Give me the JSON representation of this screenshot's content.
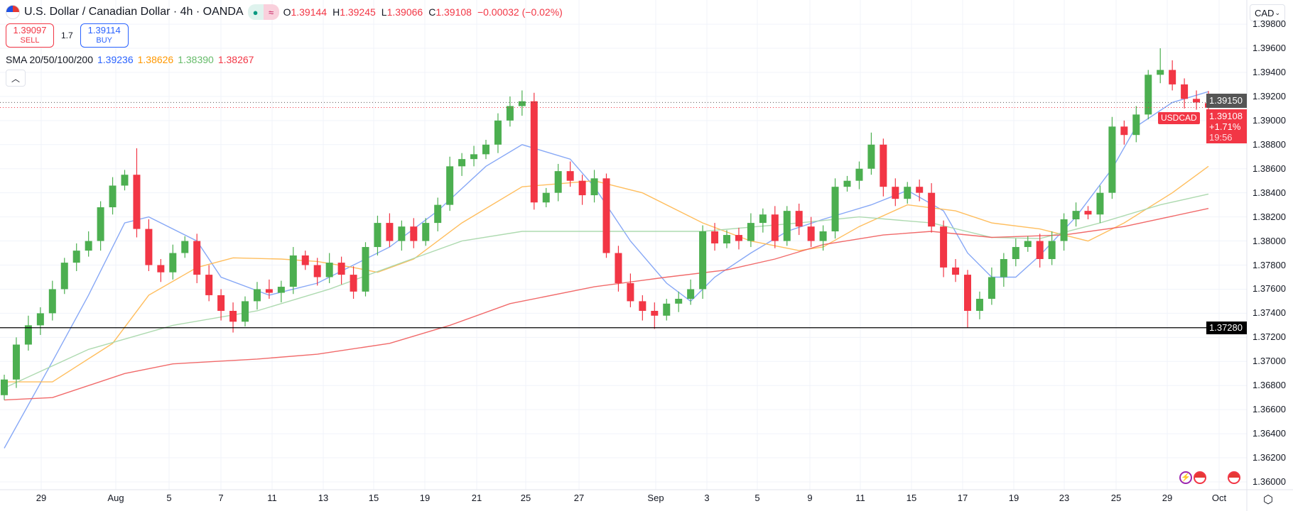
{
  "header": {
    "title": "U.S. Dollar / Canadian Dollar · 4h · OANDA",
    "status_icons": [
      "market-open-dot-icon",
      "approx-icon"
    ],
    "ohlc": {
      "o_label": "O",
      "o": "1.39144",
      "h_label": "H",
      "h": "1.39245",
      "l_label": "L",
      "l": "1.39066",
      "c_label": "C",
      "c": "1.39108",
      "change": "−0.00032 (−0.02%)"
    }
  },
  "trade": {
    "sell_price": "1.39097",
    "sell_label": "SELL",
    "spread": "1.7",
    "buy_price": "1.39114",
    "buy_label": "BUY"
  },
  "indicator": {
    "name": "SMA 20/50/100/200",
    "v20": "1.39236",
    "v50": "1.38626",
    "v100": "1.38390",
    "v200": "1.38267"
  },
  "currency_select": "CAD",
  "price_axis": {
    "ticks": [
      "1.36000",
      "1.36200",
      "1.36400",
      "1.36600",
      "1.36800",
      "1.37000",
      "1.37200",
      "1.37400",
      "1.37600",
      "1.37800",
      "1.38000",
      "1.38200",
      "1.38400",
      "1.38600",
      "1.38800",
      "1.39000",
      "1.39200",
      "1.39400",
      "1.39600",
      "1.39800"
    ],
    "hline_label": "1.37280",
    "crosshair_label": "1.39150",
    "last_price": "1.39108",
    "last_change": "+1.71%",
    "countdown": "19:56",
    "symbol_tag": "USDCAD"
  },
  "time_axis": {
    "labels": [
      "29",
      "Aug",
      "5",
      "7",
      "11",
      "13",
      "15",
      "19",
      "21",
      "25",
      "27",
      "Sep",
      "3",
      "5",
      "9",
      "11",
      "15",
      "17",
      "19",
      "23",
      "25",
      "29",
      "Oct"
    ]
  },
  "colors": {
    "up": "#4caf50",
    "down": "#f23645",
    "sma20": "#7a9ef5",
    "sma50": "#ffb74d",
    "sma100": "#a5d6a7",
    "sma200": "#f05a5a"
  },
  "chart_data": {
    "type": "candlestick",
    "symbol": "USDCAD",
    "interval": "4h",
    "ylim": [
      1.36,
      1.399
    ],
    "grid": true,
    "hlines": [
      1.3728
    ],
    "closes": [
      1.3685,
      1.3714,
      1.373,
      1.374,
      1.376,
      1.3782,
      1.3792,
      1.38,
      1.3828,
      1.3846,
      1.3855,
      1.381,
      1.378,
      1.3774,
      1.379,
      1.38,
      1.3772,
      1.3755,
      1.3742,
      1.3733,
      1.375,
      1.376,
      1.3757,
      1.3762,
      1.3788,
      1.378,
      1.377,
      1.3782,
      1.3772,
      1.3758,
      1.3795,
      1.3815,
      1.38,
      1.3812,
      1.38,
      1.3815,
      1.383,
      1.3862,
      1.3868,
      1.3872,
      1.388,
      1.39,
      1.3912,
      1.3916,
      1.3832,
      1.384,
      1.3858,
      1.385,
      1.3838,
      1.3852,
      1.379,
      1.3765,
      1.375,
      1.3742,
      1.3738,
      1.3748,
      1.3752,
      1.376,
      1.3808,
      1.3798,
      1.3805,
      1.38,
      1.3815,
      1.3822,
      1.38,
      1.3825,
      1.3812,
      1.38,
      1.3808,
      1.3845,
      1.385,
      1.386,
      1.388,
      1.3845,
      1.3835,
      1.3845,
      1.384,
      1.3812,
      1.3778,
      1.3772,
      1.3742,
      1.3752,
      1.377,
      1.3785,
      1.3795,
      1.38,
      1.3785,
      1.38,
      1.3818,
      1.3825,
      1.3822,
      1.384,
      1.3895,
      1.3888,
      1.3905,
      1.3938,
      1.3942,
      1.393,
      1.3918,
      1.3915,
      1.39108
    ],
    "first_open": 1.3672,
    "last_candle": {
      "o": 1.39144,
      "h": 1.39245,
      "l": 1.39066,
      "c": 1.39108
    },
    "notable_highs": {
      "11": 1.3877,
      "43": 1.3925,
      "72": 1.389,
      "96": 1.396
    },
    "notable_lows": {
      "0": 1.3668,
      "19": 1.3724,
      "54": 1.3727,
      "80": 1.3728
    },
    "sma": [
      {
        "name": "SMA 20",
        "color": "#7a9ef5",
        "points": [
          [
            0,
            1.3628
          ],
          [
            4,
            1.37
          ],
          [
            7,
            1.3755
          ],
          [
            10,
            1.3815
          ],
          [
            12,
            1.382
          ],
          [
            16,
            1.38
          ],
          [
            18,
            1.377
          ],
          [
            22,
            1.3755
          ],
          [
            26,
            1.3765
          ],
          [
            29,
            1.378
          ],
          [
            32,
            1.3795
          ],
          [
            36,
            1.3825
          ],
          [
            40,
            1.3862
          ],
          [
            43,
            1.388
          ],
          [
            47,
            1.3868
          ],
          [
            49,
            1.3845
          ],
          [
            52,
            1.38
          ],
          [
            55,
            1.3765
          ],
          [
            57,
            1.375
          ],
          [
            59,
            1.377
          ],
          [
            62,
            1.379
          ],
          [
            65,
            1.3808
          ],
          [
            68,
            1.3818
          ],
          [
            72,
            1.383
          ],
          [
            75,
            1.3842
          ],
          [
            78,
            1.3825
          ],
          [
            80,
            1.379
          ],
          [
            82,
            1.377
          ],
          [
            84,
            1.377
          ],
          [
            86,
            1.3788
          ],
          [
            89,
            1.382
          ],
          [
            92,
            1.386
          ],
          [
            94,
            1.3895
          ],
          [
            97,
            1.3915
          ],
          [
            100,
            1.3924
          ]
        ]
      },
      {
        "name": "SMA 50",
        "color": "#ffb74d",
        "points": [
          [
            0,
            1.3683
          ],
          [
            4,
            1.3683
          ],
          [
            9,
            1.3715
          ],
          [
            12,
            1.3755
          ],
          [
            16,
            1.3778
          ],
          [
            19,
            1.3786
          ],
          [
            23,
            1.3785
          ],
          [
            26,
            1.3783
          ],
          [
            29,
            1.3778
          ],
          [
            31,
            1.3774
          ],
          [
            34,
            1.3785
          ],
          [
            38,
            1.3815
          ],
          [
            43,
            1.3845
          ],
          [
            49,
            1.385
          ],
          [
            53,
            1.384
          ],
          [
            58,
            1.3815
          ],
          [
            62,
            1.38
          ],
          [
            66,
            1.3792
          ],
          [
            68,
            1.3795
          ],
          [
            71,
            1.3812
          ],
          [
            75,
            1.383
          ],
          [
            79,
            1.3825
          ],
          [
            82,
            1.3815
          ],
          [
            86,
            1.381
          ],
          [
            90,
            1.38
          ],
          [
            93,
            1.3815
          ],
          [
            97,
            1.384
          ],
          [
            100,
            1.3862
          ]
        ]
      },
      {
        "name": "SMA 100",
        "color": "#a5d6a7",
        "points": [
          [
            0,
            1.3678
          ],
          [
            7,
            1.371
          ],
          [
            14,
            1.373
          ],
          [
            21,
            1.3742
          ],
          [
            27,
            1.376
          ],
          [
            33,
            1.3782
          ],
          [
            38,
            1.38
          ],
          [
            43,
            1.3808
          ],
          [
            49,
            1.3808
          ],
          [
            58,
            1.3808
          ],
          [
            66,
            1.3815
          ],
          [
            71,
            1.382
          ],
          [
            77,
            1.3815
          ],
          [
            82,
            1.3803
          ],
          [
            86,
            1.3802
          ],
          [
            91,
            1.3815
          ],
          [
            96,
            1.383
          ],
          [
            100,
            1.3839
          ]
        ]
      },
      {
        "name": "SMA 200",
        "color": "#f05a5a",
        "points": [
          [
            0,
            1.3668
          ],
          [
            4,
            1.367
          ],
          [
            10,
            1.369
          ],
          [
            14,
            1.3698
          ],
          [
            21,
            1.3702
          ],
          [
            26,
            1.3706
          ],
          [
            32,
            1.3715
          ],
          [
            37,
            1.373
          ],
          [
            42,
            1.3748
          ],
          [
            49,
            1.3762
          ],
          [
            55,
            1.377
          ],
          [
            60,
            1.3776
          ],
          [
            64,
            1.3785
          ],
          [
            68,
            1.3797
          ],
          [
            73,
            1.3805
          ],
          [
            77,
            1.3808
          ],
          [
            82,
            1.3803
          ],
          [
            88,
            1.3805
          ],
          [
            93,
            1.3812
          ],
          [
            100,
            1.3827
          ]
        ]
      }
    ]
  }
}
